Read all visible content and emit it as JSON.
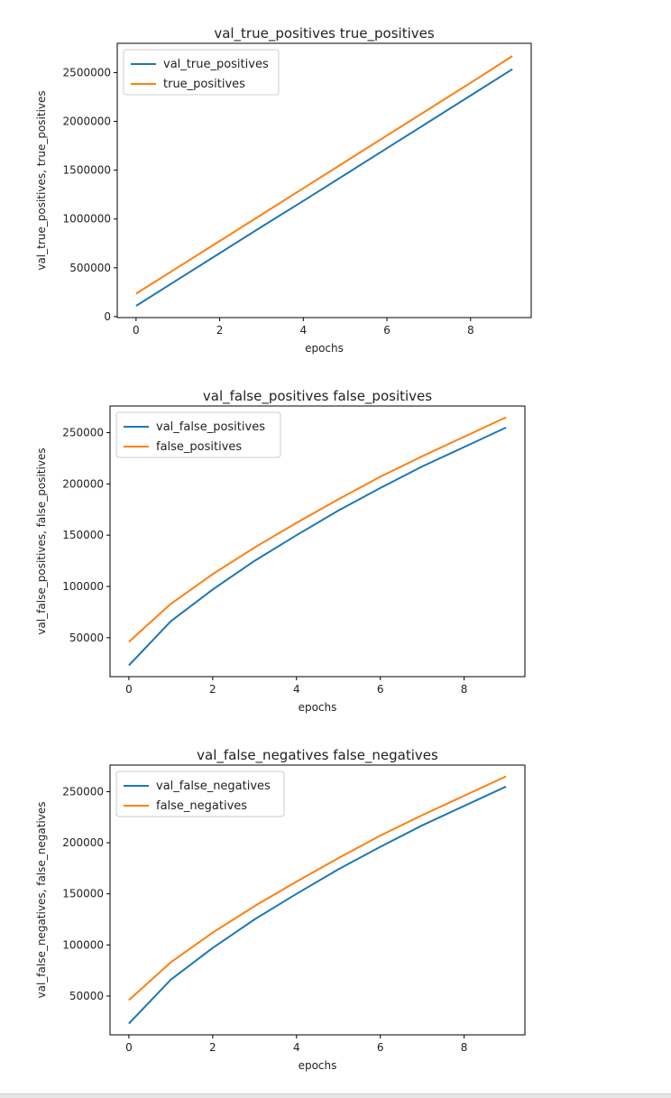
{
  "chart_data": [
    {
      "type": "line",
      "title": "val_true_positives true_positives",
      "xlabel": "epochs",
      "ylabel": "val_true_positives, true_positives",
      "x": [
        0,
        1,
        2,
        3,
        4,
        5,
        6,
        7,
        8,
        9
      ],
      "xticks": [
        0,
        2,
        4,
        6,
        8
      ],
      "yticks": [
        0,
        500000,
        1000000,
        1500000,
        2000000,
        2500000
      ],
      "ytick_labels": [
        "0",
        "500000",
        "1000000",
        "1500000",
        "2000000",
        "2500000"
      ],
      "xlim": [
        -0.45,
        9.45
      ],
      "ylim": [
        -10000,
        2800000
      ],
      "legend_position": "top-left",
      "grid": false,
      "series": [
        {
          "name": "val_true_positives",
          "color": "#1f77b4",
          "values": [
            110000,
            380000,
            650000,
            920000,
            1185000,
            1455000,
            1725000,
            1995000,
            2265000,
            2535000
          ]
        },
        {
          "name": "true_positives",
          "color": "#ff7f0e",
          "values": [
            235000,
            505000,
            775000,
            1045000,
            1315000,
            1585000,
            1855000,
            2125000,
            2395000,
            2670000
          ]
        }
      ]
    },
    {
      "type": "line",
      "title": "val_false_positives false_positives",
      "xlabel": "epochs",
      "ylabel": "val_false_positives, false_positives",
      "x": [
        0,
        1,
        2,
        3,
        4,
        5,
        6,
        7,
        8,
        9
      ],
      "xticks": [
        0,
        2,
        4,
        6,
        8
      ],
      "yticks": [
        50000,
        100000,
        150000,
        200000,
        250000
      ],
      "ytick_labels": [
        "50000",
        "100000",
        "150000",
        "200000",
        "250000"
      ],
      "xlim": [
        -0.45,
        9.45
      ],
      "ylim": [
        12000,
        276000
      ],
      "legend_position": "top-left",
      "grid": false,
      "series": [
        {
          "name": "val_false_positives",
          "color": "#1f77b4",
          "values": [
            23000,
            66000,
            97000,
            125000,
            150000,
            174000,
            196000,
            217000,
            236000,
            255000
          ]
        },
        {
          "name": "false_positives",
          "color": "#ff7f0e",
          "values": [
            46000,
            83000,
            112000,
            138000,
            162000,
            185000,
            207000,
            227000,
            246000,
            265000
          ]
        }
      ]
    },
    {
      "type": "line",
      "title": "val_false_negatives false_negatives",
      "xlabel": "epochs",
      "ylabel": "val_false_negatives, false_negatives",
      "x": [
        0,
        1,
        2,
        3,
        4,
        5,
        6,
        7,
        8,
        9
      ],
      "xticks": [
        0,
        2,
        4,
        6,
        8
      ],
      "yticks": [
        50000,
        100000,
        150000,
        200000,
        250000
      ],
      "ytick_labels": [
        "50000",
        "100000",
        "150000",
        "200000",
        "250000"
      ],
      "xlim": [
        -0.45,
        9.45
      ],
      "ylim": [
        12000,
        276000
      ],
      "legend_position": "top-left",
      "grid": false,
      "series": [
        {
          "name": "val_false_negatives",
          "color": "#1f77b4",
          "values": [
            23000,
            66000,
            97000,
            125000,
            150000,
            174000,
            196000,
            217000,
            236000,
            255000
          ]
        },
        {
          "name": "false_negatives",
          "color": "#ff7f0e",
          "values": [
            46000,
            83000,
            112000,
            138000,
            162000,
            185000,
            207000,
            227000,
            246000,
            265000
          ]
        }
      ]
    }
  ]
}
